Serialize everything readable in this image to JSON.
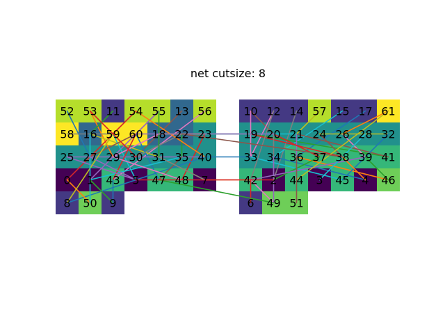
{
  "title": "net cutsize: 8",
  "colors": {
    "yellow": "#fde725",
    "yellowgreen": "#b5de2b",
    "lightgreen": "#6ece58",
    "green": "#35b779",
    "teal": "#21918c",
    "blue": "#31688e",
    "indigo": "#443983",
    "purple": "#440154"
  },
  "partitions": [
    {
      "name": "left",
      "rows": [
        [
          {
            "n": "52",
            "c": "yellowgreen"
          },
          {
            "n": "53",
            "c": "yellowgreen"
          },
          {
            "n": "11",
            "c": "indigo"
          },
          {
            "n": "54",
            "c": "yellowgreen"
          },
          {
            "n": "55",
            "c": "yellowgreen"
          },
          {
            "n": "13",
            "c": "blue"
          },
          {
            "n": "56",
            "c": "yellowgreen"
          }
        ],
        [
          {
            "n": "58",
            "c": "yellow"
          },
          {
            "n": "16",
            "c": "blue"
          },
          {
            "n": "59",
            "c": "yellow"
          },
          {
            "n": "60",
            "c": "yellow"
          },
          {
            "n": "18",
            "c": "blue"
          },
          {
            "n": "22",
            "c": "blue"
          },
          {
            "n": "23",
            "c": "teal"
          }
        ],
        [
          {
            "n": "25",
            "c": "teal"
          },
          {
            "n": "27",
            "c": "teal"
          },
          {
            "n": "29",
            "c": "teal"
          },
          {
            "n": "30",
            "c": "teal"
          },
          {
            "n": "31",
            "c": "teal"
          },
          {
            "n": "35",
            "c": "teal"
          },
          {
            "n": "40",
            "c": "teal"
          }
        ],
        [
          {
            "n": "0",
            "c": "purple"
          },
          {
            "n": "1",
            "c": "purple"
          },
          {
            "n": "43",
            "c": "green"
          },
          {
            "n": "5",
            "c": "purple"
          },
          {
            "n": "47",
            "c": "green"
          },
          {
            "n": "48",
            "c": "green"
          },
          {
            "n": "7",
            "c": "purple"
          }
        ],
        [
          {
            "n": "8",
            "c": "indigo"
          },
          {
            "n": "50",
            "c": "lightgreen"
          },
          {
            "n": "9",
            "c": "indigo"
          }
        ]
      ]
    },
    {
      "name": "right",
      "rows": [
        [
          {
            "n": "10",
            "c": "indigo"
          },
          {
            "n": "12",
            "c": "indigo"
          },
          {
            "n": "14",
            "c": "indigo"
          },
          {
            "n": "57",
            "c": "yellowgreen"
          },
          {
            "n": "15",
            "c": "indigo"
          },
          {
            "n": "17",
            "c": "indigo"
          },
          {
            "n": "61",
            "c": "yellow"
          }
        ],
        [
          {
            "n": "19",
            "c": "teal"
          },
          {
            "n": "20",
            "c": "teal"
          },
          {
            "n": "21",
            "c": "teal"
          },
          {
            "n": "24",
            "c": "teal"
          },
          {
            "n": "26",
            "c": "teal"
          },
          {
            "n": "28",
            "c": "teal"
          },
          {
            "n": "32",
            "c": "teal"
          }
        ],
        [
          {
            "n": "33",
            "c": "teal"
          },
          {
            "n": "34",
            "c": "teal"
          },
          {
            "n": "36",
            "c": "green"
          },
          {
            "n": "37",
            "c": "green"
          },
          {
            "n": "38",
            "c": "green"
          },
          {
            "n": "39",
            "c": "green"
          },
          {
            "n": "41",
            "c": "green"
          }
        ],
        [
          {
            "n": "42",
            "c": "green"
          },
          {
            "n": "2",
            "c": "purple"
          },
          {
            "n": "44",
            "c": "green"
          },
          {
            "n": "3",
            "c": "purple"
          },
          {
            "n": "45",
            "c": "green"
          },
          {
            "n": "4",
            "c": "purple"
          },
          {
            "n": "46",
            "c": "lightgreen"
          }
        ],
        [
          {
            "n": "6",
            "c": "indigo"
          },
          {
            "n": "49",
            "c": "lightgreen"
          },
          {
            "n": "51",
            "c": "lightgreen"
          }
        ]
      ]
    }
  ],
  "edge_colors": [
    "#1f77b4",
    "#ff7f0e",
    "#2ca02c",
    "#d62728",
    "#9467bd",
    "#8c564b",
    "#e377c2",
    "#7f7f7f",
    "#bcbd22",
    "#17becf"
  ],
  "edges": [
    [
      "52",
      "27"
    ],
    [
      "53",
      "29"
    ],
    [
      "11",
      "16"
    ],
    [
      "54",
      "0"
    ],
    [
      "55",
      "1"
    ],
    [
      "13",
      "30"
    ],
    [
      "56",
      "43"
    ],
    [
      "58",
      "59"
    ],
    [
      "16",
      "31"
    ],
    [
      "59",
      "5"
    ],
    [
      "60",
      "47"
    ],
    [
      "18",
      "23"
    ],
    [
      "22",
      "35"
    ],
    [
      "23",
      "48"
    ],
    [
      "25",
      "40"
    ],
    [
      "27",
      "60"
    ],
    [
      "29",
      "18"
    ],
    [
      "30",
      "22"
    ],
    [
      "31",
      "7"
    ],
    [
      "35",
      "1"
    ],
    [
      "40",
      "8"
    ],
    [
      "0",
      "50"
    ],
    [
      "1",
      "9"
    ],
    [
      "43",
      "60"
    ],
    [
      "5",
      "25"
    ],
    [
      "47",
      "35"
    ],
    [
      "48",
      "29"
    ],
    [
      "7",
      "31"
    ],
    [
      "8",
      "59"
    ],
    [
      "50",
      "16"
    ],
    [
      "9",
      "43"
    ],
    [
      "54",
      "40"
    ],
    [
      "55",
      "31"
    ],
    [
      "53",
      "30"
    ],
    [
      "27",
      "5"
    ],
    [
      "10",
      "20"
    ],
    [
      "12",
      "33"
    ],
    [
      "14",
      "2"
    ],
    [
      "57",
      "21"
    ],
    [
      "15",
      "34"
    ],
    [
      "17",
      "36"
    ],
    [
      "61",
      "26"
    ],
    [
      "19",
      "41"
    ],
    [
      "20",
      "37"
    ],
    [
      "21",
      "44"
    ],
    [
      "24",
      "38"
    ],
    [
      "26",
      "39"
    ],
    [
      "28",
      "3"
    ],
    [
      "32",
      "24"
    ],
    [
      "33",
      "45"
    ],
    [
      "34",
      "4"
    ],
    [
      "36",
      "46"
    ],
    [
      "37",
      "2"
    ],
    [
      "38",
      "19"
    ],
    [
      "39",
      "42"
    ],
    [
      "41",
      "21"
    ],
    [
      "42",
      "49"
    ],
    [
      "2",
      "20"
    ],
    [
      "44",
      "61"
    ],
    [
      "3",
      "28"
    ],
    [
      "45",
      "32"
    ],
    [
      "4",
      "38"
    ],
    [
      "46",
      "39"
    ],
    [
      "6",
      "42"
    ],
    [
      "49",
      "34"
    ],
    [
      "51",
      "36"
    ],
    [
      "10",
      "33"
    ],
    [
      "12",
      "42"
    ],
    [
      "18",
      "19"
    ],
    [
      "23",
      "21"
    ],
    [
      "40",
      "33"
    ],
    [
      "7",
      "42"
    ],
    [
      "47",
      "49"
    ],
    [
      "5",
      "2"
    ],
    [
      "60",
      "20"
    ],
    [
      "22",
      "38"
    ]
  ]
}
